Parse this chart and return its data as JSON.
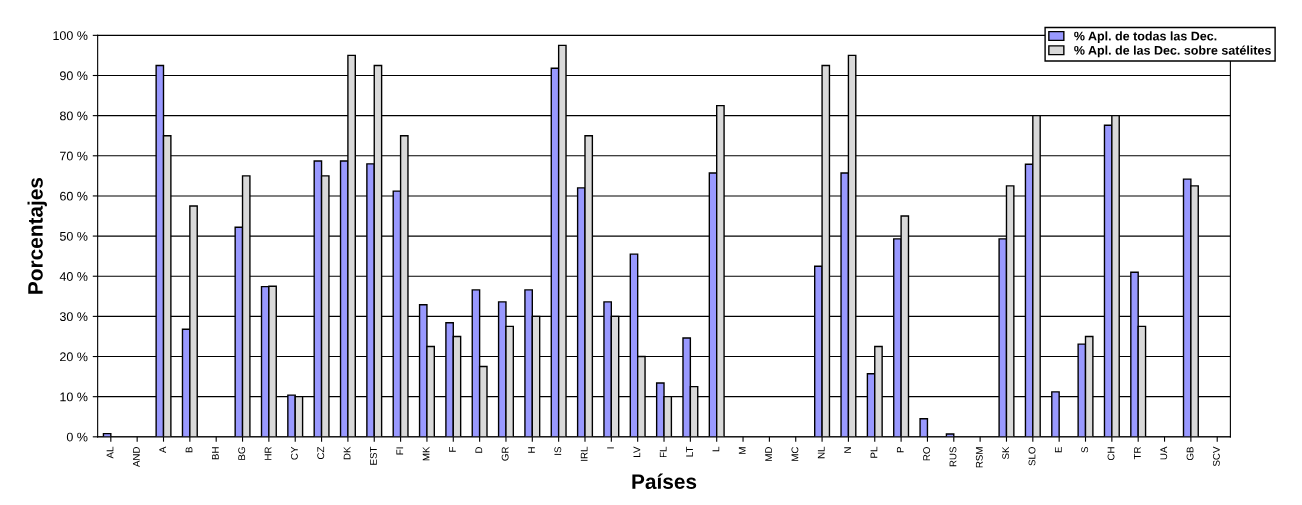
{
  "chart_data": {
    "type": "bar",
    "xlabel": "Países",
    "ylabel": "Porcentajes",
    "categories": [
      "AL",
      "AND",
      "A",
      "B",
      "BH",
      "BG",
      "HR",
      "CY",
      "CZ",
      "DK",
      "EST",
      "FI",
      "MK",
      "F",
      "D",
      "GR",
      "H",
      "IS",
      "IRL",
      "I",
      "LV",
      "FL",
      "LT",
      "L",
      "M",
      "MD",
      "MC",
      "NL",
      "N",
      "PL",
      "P",
      "RO",
      "RUS",
      "RSM",
      "SK",
      "SLO",
      "E",
      "S",
      "CH",
      "TR",
      "UA",
      "GB",
      "SCV"
    ],
    "series": [
      {
        "name": "% Apl. de todas las Dec.",
        "color": "#9999ff",
        "values": [
          0.8,
          null,
          92.5,
          26.8,
          null,
          52.2,
          37.4,
          10.4,
          68.7,
          68.7,
          68,
          61.2,
          32.9,
          28.4,
          36.6,
          33.6,
          36.6,
          91.8,
          62,
          33.6,
          45.5,
          13.4,
          24.6,
          65.7,
          null,
          null,
          null,
          42.5,
          65.7,
          15.7,
          49.3,
          4.5,
          0.7,
          null,
          49.3,
          67.9,
          11.2,
          23.1,
          77.6,
          41,
          null,
          64.2,
          null
        ]
      },
      {
        "name": "% Apl. de las Dec. sobre satélites",
        "color": "#d9d9d9",
        "values": [
          null,
          null,
          75,
          57.5,
          null,
          65,
          37.5,
          10,
          65,
          95,
          92.5,
          75,
          22.5,
          25,
          17.5,
          27.5,
          30,
          97.5,
          75,
          30,
          20,
          10,
          12.5,
          82.5,
          null,
          null,
          null,
          92.5,
          95,
          22.5,
          55,
          null,
          null,
          null,
          62.5,
          80,
          null,
          25,
          80,
          27.5,
          null,
          62.5,
          null
        ]
      }
    ],
    "ylim": [
      0,
      100
    ],
    "yticks": [
      {
        "value": 0,
        "label": "0 %"
      },
      {
        "value": 10,
        "label": "10 %"
      },
      {
        "value": 20,
        "label": "20 %"
      },
      {
        "value": 30,
        "label": "30 %"
      },
      {
        "value": 40,
        "label": "40 %"
      },
      {
        "value": 50,
        "label": "50 %"
      },
      {
        "value": 60,
        "label": "60 %"
      },
      {
        "value": 70,
        "label": "70 %"
      },
      {
        "value": 80,
        "label": "80 %"
      },
      {
        "value": 90,
        "label": "90 %"
      },
      {
        "value": 100,
        "label": "100 %"
      }
    ],
    "grid": "y",
    "legend": "top right"
  }
}
